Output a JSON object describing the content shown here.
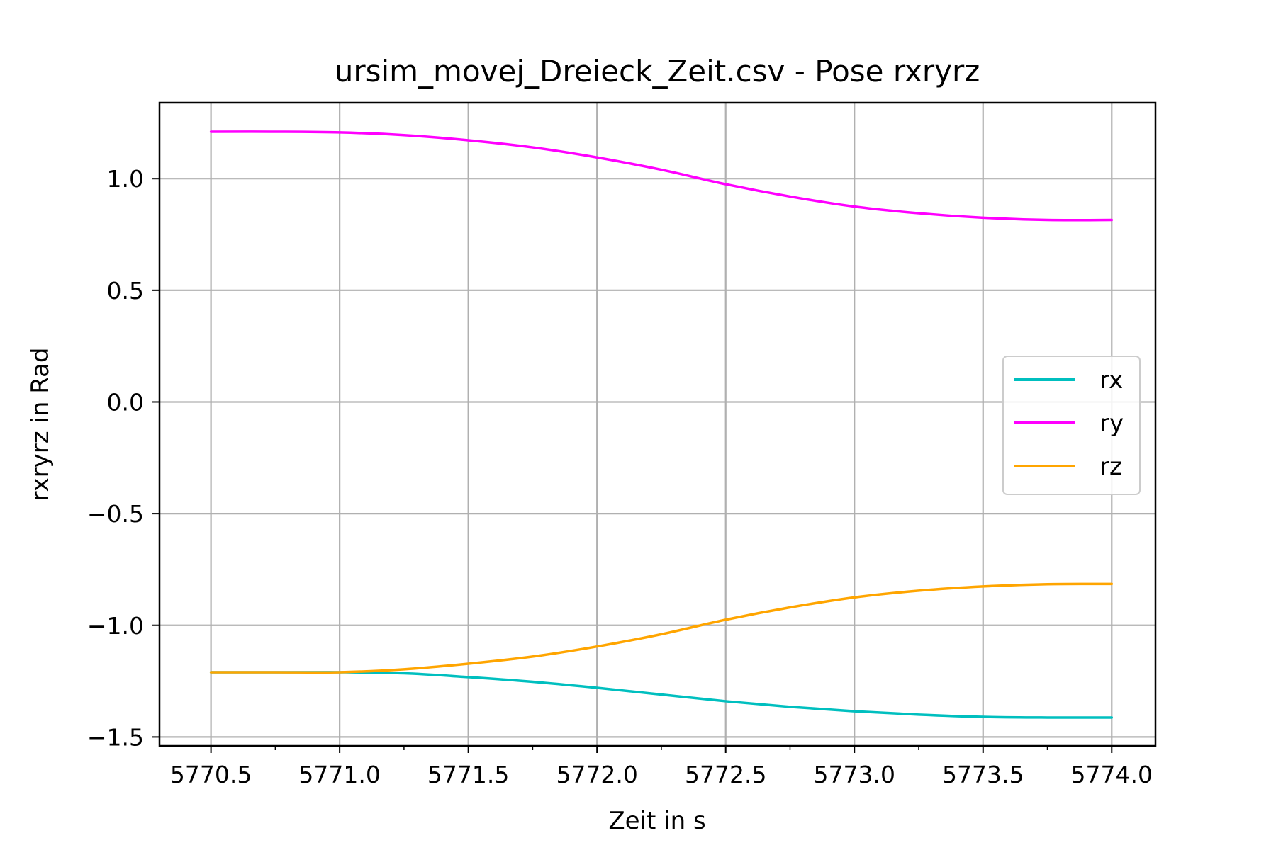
{
  "chart_data": {
    "type": "line",
    "title": "ursim_movej_Dreieck_Zeit.csv - Pose rxryrz",
    "xlabel": "Zeit in s",
    "ylabel": "rxryrz in Rad",
    "xlim": [
      5770.3,
      5774.17
    ],
    "ylim": [
      -1.54,
      1.34
    ],
    "x_ticks": [
      5770.5,
      5771.0,
      5771.5,
      5772.0,
      5772.5,
      5773.0,
      5773.5,
      5774.0
    ],
    "x_tick_labels": [
      "5770.5",
      "5771.0",
      "5771.5",
      "5772.0",
      "5772.5",
      "5773.0",
      "5773.5",
      "5774.0"
    ],
    "x_minor_ticks": [
      5770.75,
      5771.25,
      5771.75,
      5772.25,
      5772.75,
      5773.25,
      5773.75
    ],
    "y_ticks": [
      1.0,
      0.5,
      0.0,
      -0.5,
      -1.0,
      -1.5
    ],
    "y_tick_labels": [
      "1.0",
      "0.5",
      "0.0",
      "−0.5",
      "−1.0",
      "−1.5"
    ],
    "grid": true,
    "legend_position": "center-right",
    "x": [
      5770.5,
      5770.75,
      5771.0,
      5771.25,
      5771.5,
      5771.75,
      5772.0,
      5772.25,
      5772.5,
      5772.75,
      5773.0,
      5773.25,
      5773.5,
      5773.75,
      5774.0
    ],
    "series": [
      {
        "name": "rx",
        "color": "#00bfbf",
        "values": [
          -1.21,
          -1.21,
          -1.21,
          -1.215,
          -1.232,
          -1.253,
          -1.28,
          -1.31,
          -1.34,
          -1.365,
          -1.385,
          -1.4,
          -1.41,
          -1.413,
          -1.413
        ]
      },
      {
        "name": "ry",
        "color": "#ff00ff",
        "values": [
          1.21,
          1.21,
          1.207,
          1.195,
          1.172,
          1.14,
          1.095,
          1.04,
          0.975,
          0.92,
          0.875,
          0.845,
          0.825,
          0.815,
          0.815
        ]
      },
      {
        "name": "rz",
        "color": "#ffa500",
        "values": [
          -1.21,
          -1.21,
          -1.21,
          -1.197,
          -1.172,
          -1.14,
          -1.095,
          -1.04,
          -0.975,
          -0.92,
          -0.875,
          -0.845,
          -0.826,
          -0.816,
          -0.815
        ]
      }
    ]
  }
}
